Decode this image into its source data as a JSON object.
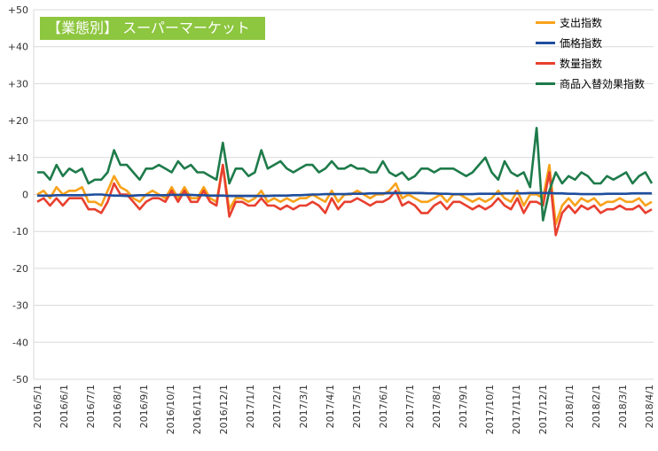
{
  "chart_data": {
    "type": "line",
    "title": "【業態別】 スーパーマーケット",
    "ylim": [
      -50,
      50
    ],
    "yticks": [
      "+50",
      "+40",
      "+30",
      "+20",
      "+10",
      "0",
      "-10",
      "-20",
      "-30",
      "-40",
      "-50"
    ],
    "ytick_values": [
      50,
      40,
      30,
      20,
      10,
      0,
      -10,
      -20,
      -30,
      -40,
      -50
    ],
    "x_tick_labels": [
      "2016/5/1",
      "2016/6/1",
      "2016/7/1",
      "2016/8/1",
      "2016/9/1",
      "2016/10/1",
      "2016/11/1",
      "2016/12/1",
      "2017/1/1",
      "2017/2/1",
      "2017/3/1",
      "2017/4/1",
      "2017/5/1",
      "2017/6/1",
      "2017/7/1",
      "2017/8/1",
      "2017/9/1",
      "2017/10/1",
      "2017/11/1",
      "2017/12/1",
      "2018/1/1",
      "2018/2/1",
      "2018/3/1",
      "2018/4/1"
    ],
    "grid": true,
    "legend_position": "top-right",
    "series": [
      {
        "name": "支出指数",
        "color": "#f7a21b",
        "values": [
          0,
          1,
          -1,
          2,
          0,
          1,
          1,
          2,
          -2,
          -2,
          -3,
          1,
          5,
          2,
          1,
          -1,
          -2,
          0,
          1,
          0,
          -1,
          2,
          -1,
          2,
          -1,
          -1,
          2,
          -1,
          -2,
          8,
          -4,
          -1,
          -1,
          -2,
          -1,
          1,
          -2,
          -1,
          -2,
          -1,
          -2,
          -1,
          -1,
          0,
          -1,
          -2,
          1,
          -2,
          0,
          0,
          1,
          0,
          -1,
          0,
          0,
          1,
          3,
          -1,
          0,
          -1,
          -2,
          -2,
          -1,
          0,
          -2,
          0,
          0,
          -1,
          -2,
          -1,
          -2,
          -1,
          1,
          -1,
          -2,
          1,
          -3,
          0,
          0,
          -1,
          8,
          -8,
          -3,
          -1,
          -3,
          -1,
          -2,
          -1,
          -3,
          -2,
          -2,
          -1,
          -2,
          -2,
          -1,
          -3,
          -2
        ]
      },
      {
        "name": "価格指数",
        "color": "#1f4e9e",
        "values": [
          -0.3,
          -0.3,
          -0.3,
          -0.2,
          -0.2,
          -0.2,
          -0.2,
          -0.2,
          -0.1,
          0,
          0,
          -0.2,
          -0.3,
          -0.3,
          -0.4,
          -0.3,
          -0.2,
          -0.2,
          -0.2,
          -0.2,
          -0.2,
          -0.1,
          -0.1,
          -0.1,
          -0.1,
          -0.2,
          -0.2,
          -0.3,
          -0.3,
          -0.3,
          -0.4,
          -0.4,
          -0.4,
          -0.4,
          -0.4,
          -0.4,
          -0.4,
          -0.3,
          -0.3,
          -0.3,
          -0.2,
          -0.2,
          -0.1,
          0,
          0,
          0.1,
          0.1,
          0.1,
          0.1,
          0.2,
          0.2,
          0.2,
          0.3,
          0.3,
          0.3,
          0.4,
          0.4,
          0.4,
          0.4,
          0.4,
          0.4,
          0.3,
          0.3,
          0.2,
          0.2,
          0.1,
          0.1,
          0.1,
          0.1,
          0.2,
          0.2,
          0.2,
          0.2,
          0.3,
          0.3,
          0.3,
          0.3,
          0.4,
          0.4,
          0.4,
          0.4,
          0.3,
          0.3,
          0.2,
          0.2,
          0.1,
          0.1,
          0.1,
          0.1,
          0.2,
          0.2,
          0.2,
          0.2,
          0.3,
          0.3,
          0.3,
          0.3
        ]
      },
      {
        "name": "数量指数",
        "color": "#e8402f",
        "values": [
          -2,
          -1,
          -3,
          -1,
          -3,
          -1,
          -1,
          -1,
          -4,
          -4,
          -5,
          -2,
          3,
          0,
          0,
          -2,
          -4,
          -2,
          -1,
          -1,
          -2,
          1,
          -2,
          1,
          -2,
          -2,
          1,
          -2,
          -3,
          8,
          -6,
          -2,
          -2,
          -3,
          -3,
          -1,
          -3,
          -3,
          -4,
          -3,
          -4,
          -3,
          -3,
          -2,
          -3,
          -5,
          -1,
          -4,
          -2,
          -2,
          -1,
          -2,
          -3,
          -2,
          -2,
          -1,
          1,
          -3,
          -2,
          -3,
          -5,
          -5,
          -3,
          -2,
          -4,
          -2,
          -2,
          -3,
          -4,
          -3,
          -4,
          -3,
          -1,
          -3,
          -4,
          -1,
          -5,
          -2,
          -2,
          -3,
          6,
          -11,
          -5,
          -3,
          -5,
          -3,
          -4,
          -3,
          -5,
          -4,
          -4,
          -3,
          -4,
          -4,
          -3,
          -5,
          -4
        ]
      },
      {
        "name": "商品入替効果指数",
        "color": "#1e7b4a",
        "values": [
          6,
          6,
          4,
          8,
          5,
          7,
          6,
          7,
          3,
          4,
          4,
          6,
          12,
          8,
          8,
          6,
          4,
          7,
          7,
          8,
          7,
          6,
          9,
          7,
          8,
          6,
          6,
          5,
          4,
          14,
          3,
          7,
          7,
          5,
          6,
          12,
          7,
          8,
          9,
          7,
          6,
          7,
          8,
          8,
          6,
          7,
          9,
          7,
          7,
          8,
          7,
          7,
          6,
          6,
          9,
          6,
          5,
          6,
          4,
          5,
          7,
          7,
          6,
          7,
          7,
          7,
          6,
          5,
          6,
          8,
          10,
          6,
          4,
          9,
          6,
          5,
          6,
          2,
          18,
          -7,
          1,
          6,
          3,
          5,
          4,
          6,
          5,
          3,
          3,
          5,
          4,
          5,
          6,
          3,
          5,
          6,
          3
        ]
      }
    ]
  }
}
